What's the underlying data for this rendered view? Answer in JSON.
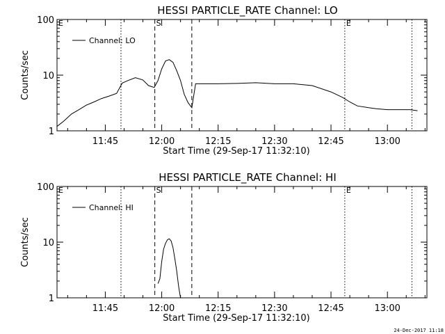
{
  "chart_data": [
    {
      "type": "line",
      "title": "HESSI PARTICLE_RATE Channel: LO",
      "xlabel": "Start Time (29-Sep-17 11:32:10)",
      "ylabel": "Counts/sec",
      "y_scale": "log",
      "ylim": [
        1,
        100
      ],
      "y_ticks": [
        1,
        10,
        100
      ],
      "y_tick_labels": [
        "1",
        "10",
        "100"
      ],
      "x_range": [
        "11:32:10",
        "13:10:30"
      ],
      "x_ticks": [
        "11:45",
        "12:00",
        "12:15",
        "12:30",
        "12:45",
        "13:00"
      ],
      "legend": {
        "label": "Channel: LO",
        "position": "top-left"
      },
      "markers": [
        {
          "label": "E",
          "time": "11:32:10",
          "style": "dotted"
        },
        {
          "label": "",
          "time": "11:49:10",
          "style": "dotted"
        },
        {
          "label": "S",
          "time": "11:58:10",
          "style": "dashed"
        },
        {
          "label": "",
          "time": "12:08:00",
          "style": "dashed"
        },
        {
          "label": "E",
          "time": "12:48:40",
          "style": "dotted"
        },
        {
          "label": "",
          "time": "13:06:30",
          "style": "dotted"
        }
      ],
      "series": [
        {
          "name": "Channel: LO",
          "x": [
            "11:32:10",
            "11:34:00",
            "11:36:00",
            "11:38:00",
            "11:40:00",
            "11:42:00",
            "11:44:00",
            "11:46:00",
            "11:48:00",
            "11:49:30",
            "11:51:00",
            "11:53:00",
            "11:55:00",
            "11:56:30",
            "11:58:00",
            "11:59:00",
            "12:00:00",
            "12:01:00",
            "12:02:00",
            "12:03:00",
            "12:04:00",
            "12:05:00",
            "12:06:00",
            "12:07:00",
            "12:08:00",
            "12:09:00",
            "12:10:00",
            "12:15:00",
            "12:20:00",
            "12:25:00",
            "12:30:00",
            "12:35:00",
            "12:40:00",
            "12:45:00",
            "12:48:00",
            "12:50:00",
            "12:52:00",
            "12:55:00",
            "12:57:00",
            "13:00:00",
            "13:03:00",
            "13:06:00",
            "13:08:00"
          ],
          "values": [
            1.2,
            1.5,
            2.0,
            2.4,
            2.9,
            3.3,
            3.8,
            4.2,
            4.7,
            7.2,
            8.0,
            9.0,
            8.2,
            6.5,
            6.0,
            8.0,
            13.0,
            18.0,
            19.0,
            17.0,
            12.0,
            8.0,
            4.5,
            3.2,
            2.6,
            7.0,
            7.0,
            7.0,
            7.1,
            7.3,
            7.0,
            7.0,
            6.5,
            5.0,
            4.0,
            3.3,
            2.8,
            2.6,
            2.5,
            2.4,
            2.4,
            2.4,
            2.3
          ]
        }
      ]
    },
    {
      "type": "line",
      "title": "HESSI PARTICLE_RATE Channel: HI",
      "xlabel": "Start Time (29-Sep-17 11:32:10)",
      "ylabel": "Counts/sec",
      "y_scale": "log",
      "ylim": [
        1,
        100
      ],
      "y_ticks": [
        1,
        10,
        100
      ],
      "y_tick_labels": [
        "1",
        "10",
        "100"
      ],
      "x_range": [
        "11:32:10",
        "13:10:30"
      ],
      "x_ticks": [
        "11:45",
        "12:00",
        "12:15",
        "12:30",
        "12:45",
        "13:00"
      ],
      "legend": {
        "label": "Channel: HI",
        "position": "top-left"
      },
      "markers": [
        {
          "label": "E",
          "time": "11:32:10",
          "style": "dotted"
        },
        {
          "label": "",
          "time": "11:49:10",
          "style": "dotted"
        },
        {
          "label": "S",
          "time": "11:58:10",
          "style": "dashed"
        },
        {
          "label": "",
          "time": "12:08:00",
          "style": "dashed"
        },
        {
          "label": "E",
          "time": "12:48:40",
          "style": "dotted"
        },
        {
          "label": "",
          "time": "13:06:30",
          "style": "dotted"
        }
      ],
      "series": [
        {
          "name": "Channel: HI",
          "x": [
            "11:59:00",
            "11:59:30",
            "12:00:00",
            "12:00:30",
            "12:01:00",
            "12:01:30",
            "12:02:00",
            "12:02:30",
            "12:03:00",
            "12:03:30",
            "12:04:00",
            "12:04:30",
            "12:05:00"
          ],
          "values": [
            1.8,
            2.2,
            4.5,
            7.5,
            9.5,
            11.0,
            11.5,
            10.5,
            8.0,
            5.0,
            3.0,
            1.6,
            1.0
          ]
        }
      ]
    }
  ],
  "footer": {
    "timestamp": "24-Dec-2017 11:18"
  }
}
